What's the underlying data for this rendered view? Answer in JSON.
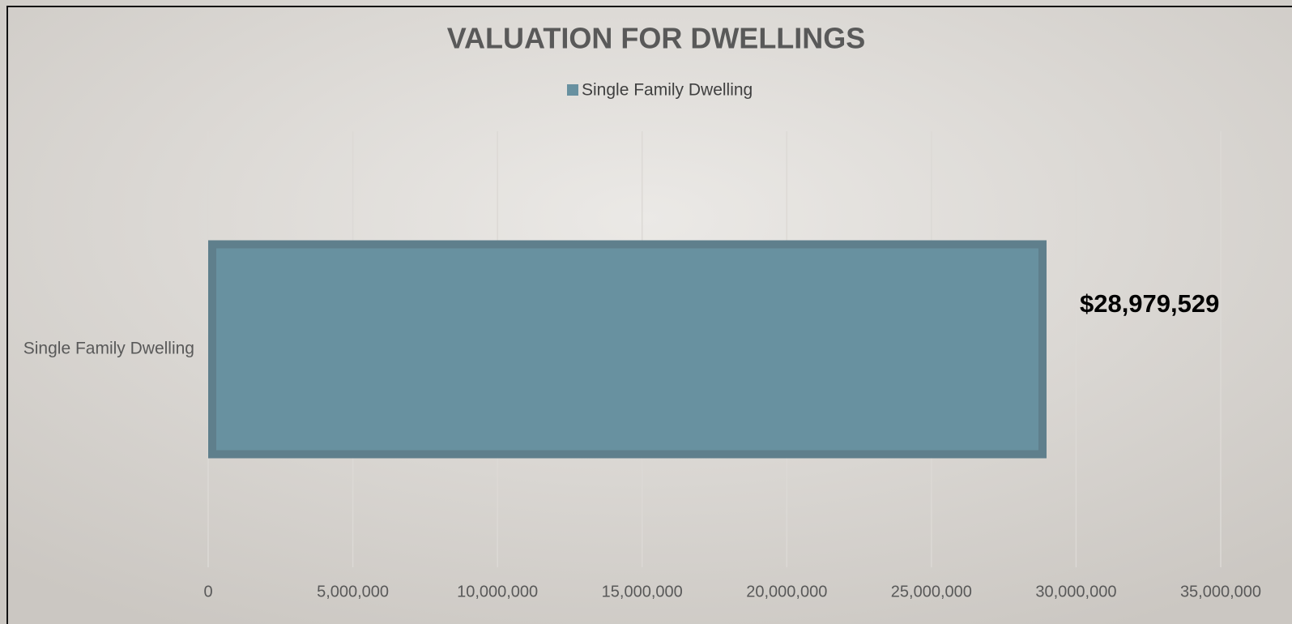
{
  "chart_data": {
    "type": "bar",
    "orientation": "horizontal",
    "title": "VALUATION FOR DWELLINGS",
    "categories": [
      "Single Family Dwelling"
    ],
    "series": [
      {
        "name": "Single Family Dwelling",
        "color": "#6891a0",
        "values": [
          28979529
        ],
        "value_labels": [
          "$28,979,529"
        ]
      }
    ],
    "xlim": [
      0,
      35000000
    ],
    "xticks": [
      0,
      {
        "value": 5000000,
        "label": "5,000,000"
      },
      {
        "value": 10000000,
        "label": "10,000,000"
      },
      {
        "value": 15000000,
        "label": "15,000,000"
      },
      {
        "value": 20000000,
        "label": "20,000,000"
      },
      {
        "value": 25000000,
        "label": "25,000,000"
      },
      {
        "value": 30000000,
        "label": "30,000,000"
      },
      {
        "value": 35000000,
        "label": "35,000,000"
      }
    ],
    "grid": true,
    "legend": "top"
  }
}
